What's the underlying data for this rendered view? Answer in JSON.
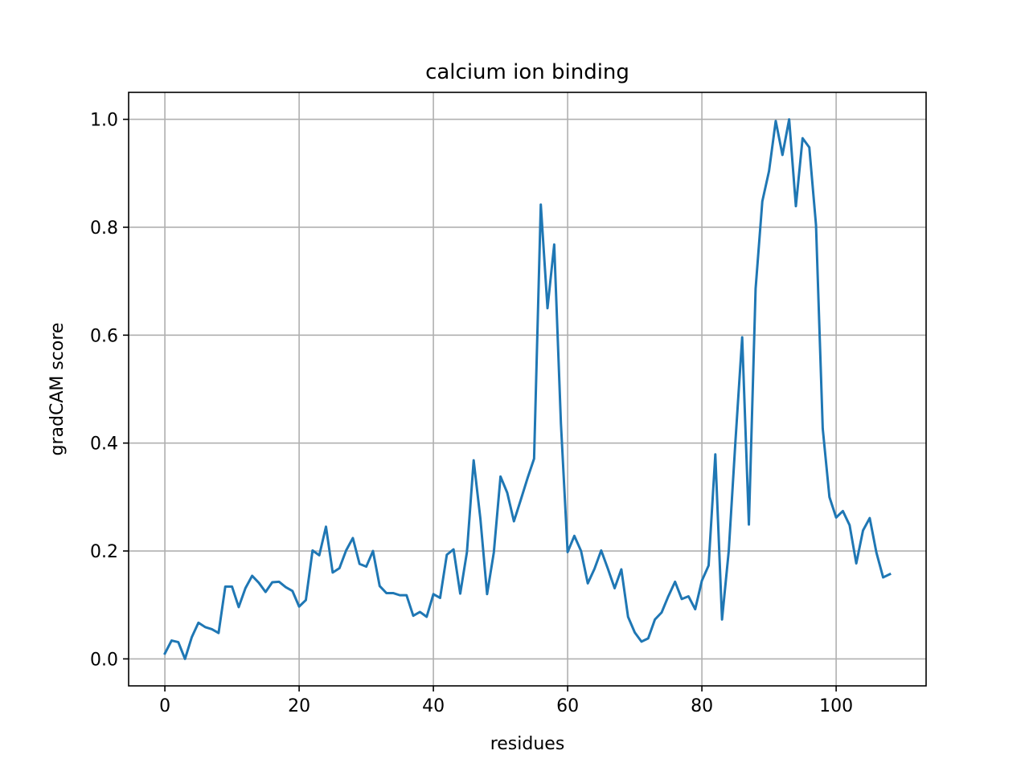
{
  "chart_data": {
    "type": "line",
    "title": "calcium ion binding",
    "xlabel": "residues",
    "ylabel": "gradCAM score",
    "xlim": [
      -5.4,
      113.4
    ],
    "ylim": [
      -0.05,
      1.05
    ],
    "xticks": [
      0,
      20,
      40,
      60,
      80,
      100
    ],
    "xtick_labels": [
      "0",
      "20",
      "40",
      "60",
      "80",
      "100"
    ],
    "yticks": [
      0.0,
      0.2,
      0.4,
      0.6,
      0.8,
      1.0
    ],
    "ytick_labels": [
      "0.0",
      "0.2",
      "0.4",
      "0.6",
      "0.8",
      "1.0"
    ],
    "grid": true,
    "line_color": "#1f77b4",
    "series": [
      {
        "x": [
          0,
          1,
          2,
          3,
          4,
          5,
          6,
          7,
          8,
          9,
          10,
          11,
          12,
          13,
          14,
          15,
          16,
          17,
          18,
          19,
          20,
          21,
          22,
          23,
          24,
          25,
          26,
          27,
          28,
          29,
          30,
          31,
          32,
          33,
          34,
          35,
          36,
          37,
          38,
          39,
          40,
          41,
          42,
          43,
          44,
          45,
          46,
          47,
          48,
          49,
          50,
          51,
          52,
          53,
          54,
          55,
          56,
          57,
          58,
          59,
          60,
          61,
          62,
          63,
          64,
          65,
          66,
          67,
          68,
          69,
          70,
          71,
          72,
          73,
          74,
          75,
          76,
          77,
          78,
          79,
          80,
          81,
          82,
          83,
          84,
          85,
          86,
          87,
          88,
          89,
          90,
          91,
          92,
          93,
          94,
          95,
          96,
          97,
          98,
          99,
          100,
          101,
          102,
          103,
          104,
          105,
          106,
          107,
          108
        ],
        "values": [
          0.01,
          0.034,
          0.031,
          0.0,
          0.04,
          0.067,
          0.059,
          0.055,
          0.048,
          0.134,
          0.134,
          0.096,
          0.131,
          0.154,
          0.141,
          0.124,
          0.142,
          0.143,
          0.133,
          0.126,
          0.097,
          0.109,
          0.201,
          0.192,
          0.245,
          0.16,
          0.168,
          0.201,
          0.224,
          0.176,
          0.171,
          0.2,
          0.135,
          0.122,
          0.122,
          0.118,
          0.118,
          0.08,
          0.087,
          0.078,
          0.12,
          0.113,
          0.193,
          0.203,
          0.121,
          0.198,
          0.368,
          0.26,
          0.12,
          0.197,
          0.338,
          0.308,
          0.255,
          0.294,
          0.334,
          0.371,
          0.842,
          0.65,
          0.768,
          0.436,
          0.198,
          0.228,
          0.2,
          0.14,
          0.167,
          0.201,
          0.167,
          0.131,
          0.166,
          0.078,
          0.049,
          0.032,
          0.038,
          0.073,
          0.086,
          0.116,
          0.143,
          0.111,
          0.116,
          0.092,
          0.145,
          0.173,
          0.379,
          0.073,
          0.2,
          0.404,
          0.596,
          0.249,
          0.686,
          0.848,
          0.904,
          0.997,
          0.934,
          1.0,
          0.839,
          0.965,
          0.948,
          0.804,
          0.427,
          0.3,
          0.262,
          0.274,
          0.248,
          0.177,
          0.238,
          0.261,
          0.197,
          0.151,
          0.157
        ]
      }
    ]
  }
}
